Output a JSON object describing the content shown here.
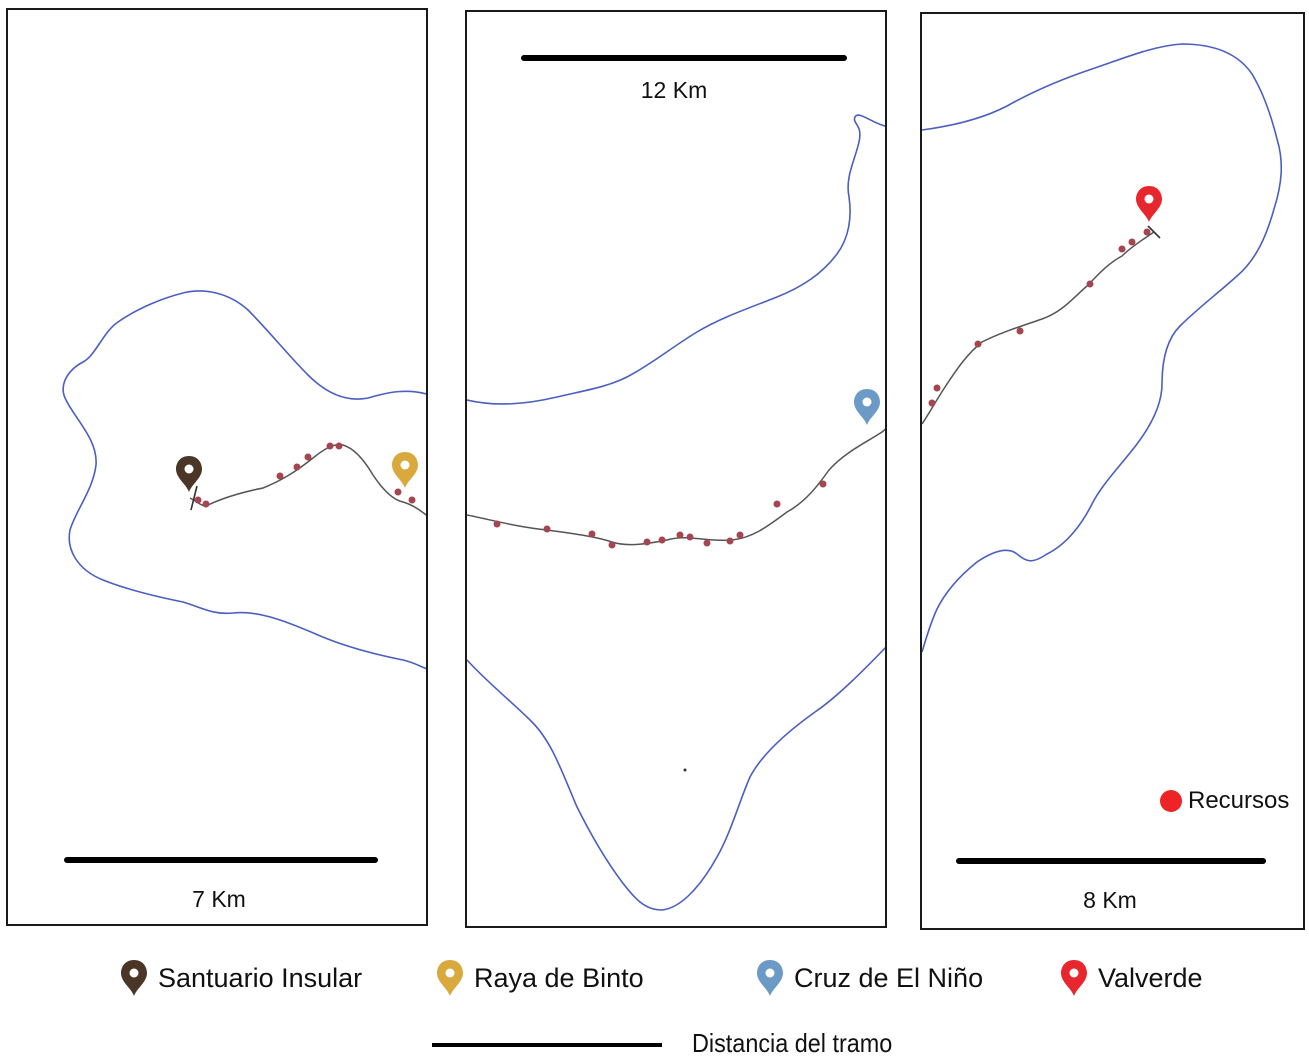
{
  "panels": [
    {
      "scale_label": "7 Km"
    },
    {
      "scale_label": "12 Km"
    },
    {
      "scale_label": "8 Km"
    }
  ],
  "legend": {
    "items": [
      {
        "label": "Santuario Insular",
        "color": "#4a3526"
      },
      {
        "label": "Raya de Binto",
        "color": "#d9a93e"
      },
      {
        "label": "Cruz de El Niño",
        "color": "#6b9ac7"
      },
      {
        "label": "Valverde",
        "color": "#e8262d"
      }
    ],
    "recursos_label": "Recursos",
    "recursos_color": "#ee2326",
    "distance_label": "Distancia del tramo"
  },
  "colors": {
    "coastline": "#4a5fc0",
    "route": "#555555",
    "resource_dot": "#a4454f"
  }
}
